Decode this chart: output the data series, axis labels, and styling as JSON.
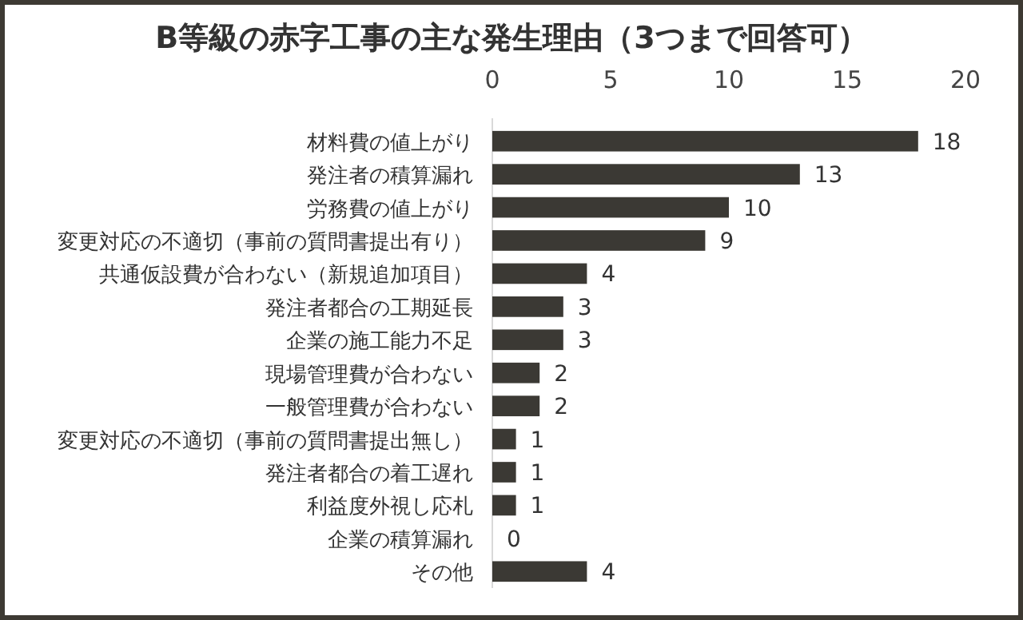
{
  "chart_data": {
    "type": "bar",
    "orientation": "horizontal",
    "title": "B等級の赤字工事の主な発生理由（3つまで回答可）",
    "categories": [
      "材料費の値上がり",
      "発注者の積算漏れ",
      "労務費の値上がり",
      "変更対応の不適切（事前の質問書提出有り）",
      "共通仮設費が合わない（新規追加項目）",
      "発注者都合の工期延長",
      "企業の施工能力不足",
      "現場管理費が合わない",
      "一般管理費が合わない",
      "変更対応の不適切（事前の質問書提出無し）",
      "発注者都合の着工遅れ",
      "利益度外視し応札",
      "企業の積算漏れ",
      "その他"
    ],
    "values": [
      18,
      13,
      10,
      9,
      4,
      3,
      3,
      2,
      2,
      1,
      1,
      1,
      0,
      4
    ],
    "color": "#3b3934",
    "xlim": [
      0,
      20
    ],
    "xticks": [
      0,
      5,
      10,
      15,
      20
    ],
    "data_labels": true,
    "grid": false
  }
}
